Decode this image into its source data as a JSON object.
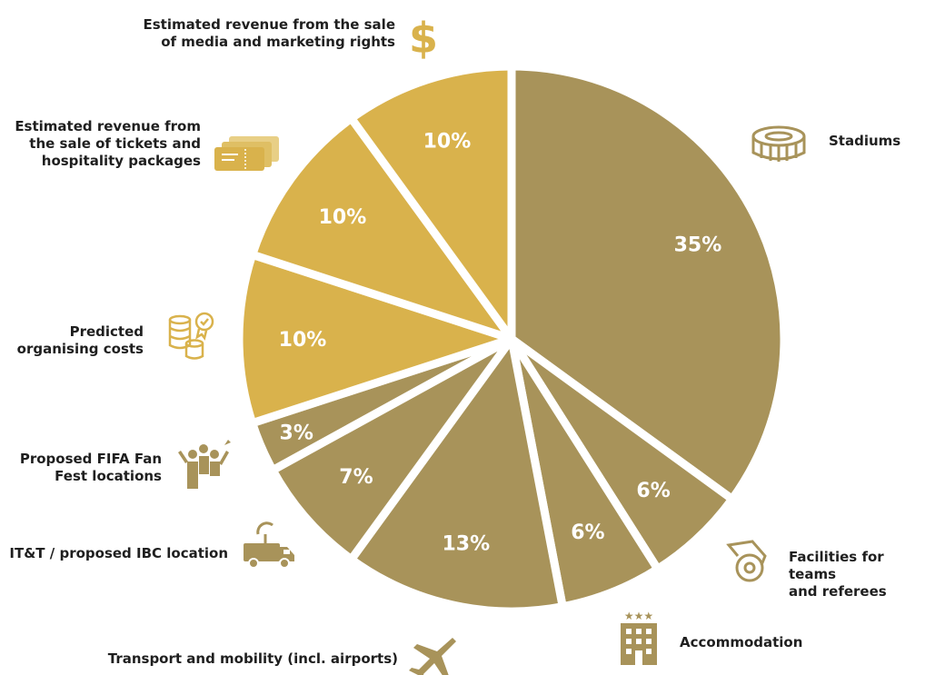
{
  "chart_data": {
    "type": "pie",
    "slices": [
      {
        "label": "Stadiums",
        "value": 35,
        "value_label": "35%",
        "color": "#a8935a",
        "icon": "stadium-icon"
      },
      {
        "label": "Facilities for teams and referees",
        "value": 6,
        "value_label": "6%",
        "color": "#a8935a",
        "icon": "whistle-icon"
      },
      {
        "label": "Accommodation",
        "value": 6,
        "value_label": "6%",
        "color": "#a8935a",
        "icon": "hotel-icon"
      },
      {
        "label": "Transport and mobility (incl. airports)",
        "value": 13,
        "value_label": "13%",
        "color": "#a8935a",
        "icon": "airplane-icon"
      },
      {
        "label": "IT&T / proposed IBC location",
        "value": 7,
        "value_label": "7%",
        "color": "#a8935a",
        "icon": "broadcast-van-icon"
      },
      {
        "label": "Proposed FIFA Fan Fest locations",
        "value": 3,
        "value_label": "3%",
        "color": "#a8935a",
        "icon": "fans-icon"
      },
      {
        "label": "Predicted organising costs",
        "value": 10,
        "value_label": "10%",
        "color": "#d9b24c",
        "icon": "coins-icon"
      },
      {
        "label": "Estimated revenue from the sale of tickets and hospitality packages",
        "value": 10,
        "value_label": "10%",
        "color": "#d9b24c",
        "icon": "tickets-icon"
      },
      {
        "label": "Estimated revenue from the sale of media and marketing rights",
        "value": 10,
        "value_label": "10%",
        "color": "#d9b24c",
        "icon": "dollar-icon"
      }
    ]
  },
  "labels": {
    "stadiums": "Stadiums",
    "facilities": "Facilities for teams\nand referees",
    "accommodation": "Accommodation",
    "transport": "Transport and mobility (incl. airports)",
    "itt": "IT&T / proposed IBC location",
    "fanfest": "Proposed FIFA Fan\nFest locations",
    "organising": "Predicted\norganising costs",
    "tickets": "Estimated revenue from\nthe sale of tickets and\nhospitality packages",
    "media": "Estimated revenue from the sale\nof media and marketing rights"
  },
  "colors": {
    "text": "#1f1f1f",
    "dark_gold": "#a8935a",
    "light_gold": "#d9b24c",
    "gap": "#ffffff"
  }
}
